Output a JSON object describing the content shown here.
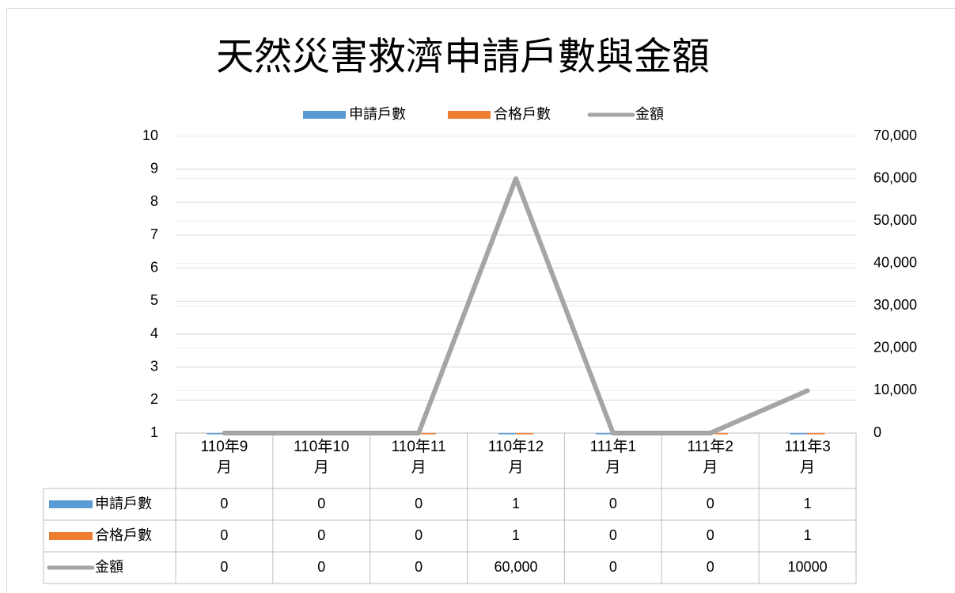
{
  "chart_data": {
    "type": "combo",
    "title": "天然災害救濟申請戶數與金額",
    "categories": [
      "110年9月",
      "110年10月",
      "110年11月",
      "110年12月",
      "111年1月",
      "111年2月",
      "111年3月"
    ],
    "series": [
      {
        "name": "申請戶數",
        "type": "bar",
        "color": "#5b9bd5",
        "values": [
          0,
          0,
          0,
          1,
          0,
          0,
          1
        ]
      },
      {
        "name": "合格戶數",
        "type": "bar",
        "color": "#ed7d31",
        "values": [
          0,
          0,
          0,
          1,
          0,
          0,
          1
        ]
      },
      {
        "name": "金額",
        "type": "line",
        "axis": "y2",
        "color": "#a5a5a5",
        "values": [
          0,
          0,
          0,
          60000,
          0,
          0,
          10000
        ],
        "value_labels": [
          "0",
          "0",
          "0",
          "60,000",
          "0",
          "0",
          "10000"
        ]
      }
    ],
    "ylim": [
      1,
      10
    ],
    "yticks": [
      1,
      2,
      3,
      4,
      5,
      6,
      7,
      8,
      9,
      10
    ],
    "y2lim": [
      0,
      70000
    ],
    "y2ticks": [
      0,
      {
        "value": 10000,
        "label": "10,000"
      },
      {
        "value": 20000,
        "label": "20,000"
      },
      {
        "value": 30000,
        "label": "30,000"
      },
      {
        "value": 40000,
        "label": "40,000"
      },
      {
        "value": 50000,
        "label": "50,000"
      },
      {
        "value": 60000,
        "label": "60,000"
      },
      {
        "value": 70000,
        "label": "70,000"
      }
    ],
    "grid": true,
    "legend": "top",
    "data_table": true
  }
}
